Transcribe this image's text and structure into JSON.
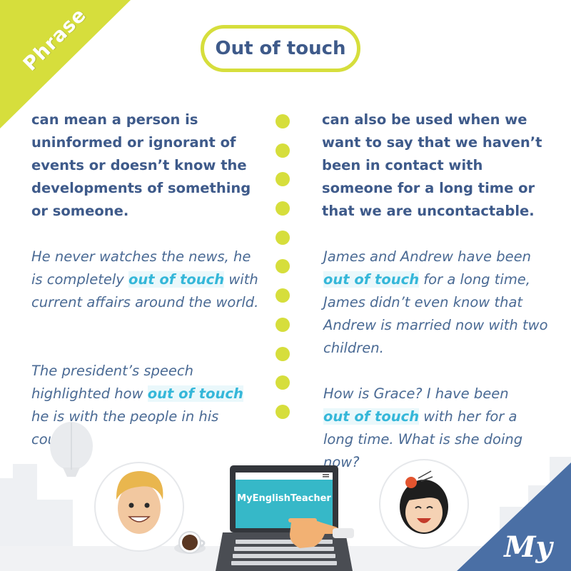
{
  "ribbon": {
    "label": "Phrase"
  },
  "title": "Out of touch",
  "left": {
    "definition": "can mean a person is uninformed or ignorant of events or doesn’t know the developments of something or someone.",
    "example1": {
      "before": "He never watches the news, he is completely ",
      "phrase": "out of touch",
      "after": " with current affairs around the world."
    },
    "example2": {
      "before": "The president’s speech highlighted how ",
      "phrase": "out of touch",
      "after": " he is with the people in his country."
    }
  },
  "right": {
    "definition": "can also be used when we want to say that we haven’t been in contact with someone for a long time or that we are uncontactable.",
    "example1": {
      "before": "James and Andrew have been ",
      "phrase": "out of touch",
      "after": " for a long time, James didn’t even know that Andrew is married now with two children."
    },
    "example2": {
      "before": "How is Grace? I have been ",
      "phrase": "out of touch",
      "after": " with her for a long time. What is she doing now?"
    }
  },
  "divider": {
    "dot_count": 11
  },
  "laptop": {
    "screen_text": "MyEnglishTeacher"
  },
  "colors": {
    "accent_lime": "#d6de3c",
    "text_navy": "#3e5a8a",
    "highlight_cyan": "#35b7d9",
    "logo_blue": "#4a6fa5"
  },
  "icons": [
    "hot-air-balloon-icon",
    "boy-avatar-icon",
    "girl-avatar-icon",
    "laptop-icon",
    "coffee-cup-icon",
    "hand-icon",
    "logo-icon"
  ]
}
